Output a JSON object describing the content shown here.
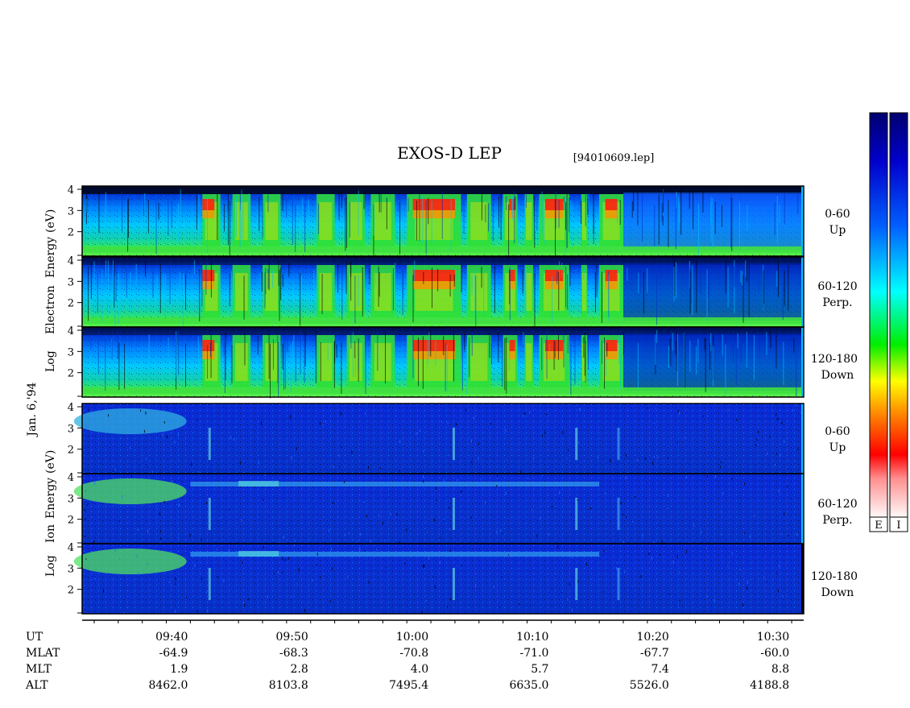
{
  "chart_data": {
    "type": "heatmap",
    "title": "EXOS-D LEP",
    "file_label": "[94010609.lep]",
    "date_label": "Jan. 6,'94",
    "electron": {
      "ylabel": [
        "Electron",
        "Energy",
        "Log",
        "(eV)"
      ],
      "panels": [
        {
          "angle": "0-60",
          "direction": "Up"
        },
        {
          "angle": "60-120",
          "direction": "Perp."
        },
        {
          "angle": "120-180",
          "direction": "Down"
        }
      ]
    },
    "ion": {
      "ylabel": [
        "Ion",
        "Energy",
        "Log",
        "(eV)"
      ],
      "panels": [
        {
          "angle": "0-60",
          "direction": "Up"
        },
        {
          "angle": "60-120",
          "direction": "Perp."
        },
        {
          "angle": "120-180",
          "direction": "Down"
        }
      ]
    },
    "y_ticks": [
      "4",
      "3",
      "2"
    ],
    "ylim": [
      1,
      4
    ],
    "x_range": [
      "09:32",
      "10:32"
    ],
    "colorbar_labels": [
      "E",
      "I"
    ],
    "footer": {
      "row_labels": [
        "UT",
        "MLAT",
        "MLT",
        "ALT"
      ],
      "columns": [
        {
          "UT": "09:40",
          "MLAT": "-64.9",
          "MLT": "1.9",
          "ALT": "8462.0"
        },
        {
          "UT": "09:50",
          "MLAT": "-68.3",
          "MLT": "2.8",
          "ALT": "8103.8"
        },
        {
          "UT": "10:00",
          "MLAT": "-70.8",
          "MLT": "4.0",
          "ALT": "7495.4"
        },
        {
          "UT": "10:10",
          "MLAT": "-71.0",
          "MLT": "5.7",
          "ALT": "6635.0"
        },
        {
          "UT": "10:20",
          "MLAT": "-67.7",
          "MLT": "7.4",
          "ALT": "5526.0"
        },
        {
          "UT": "10:30",
          "MLAT": "-60.0",
          "MLT": "8.8",
          "ALT": "4188.8"
        }
      ]
    }
  }
}
